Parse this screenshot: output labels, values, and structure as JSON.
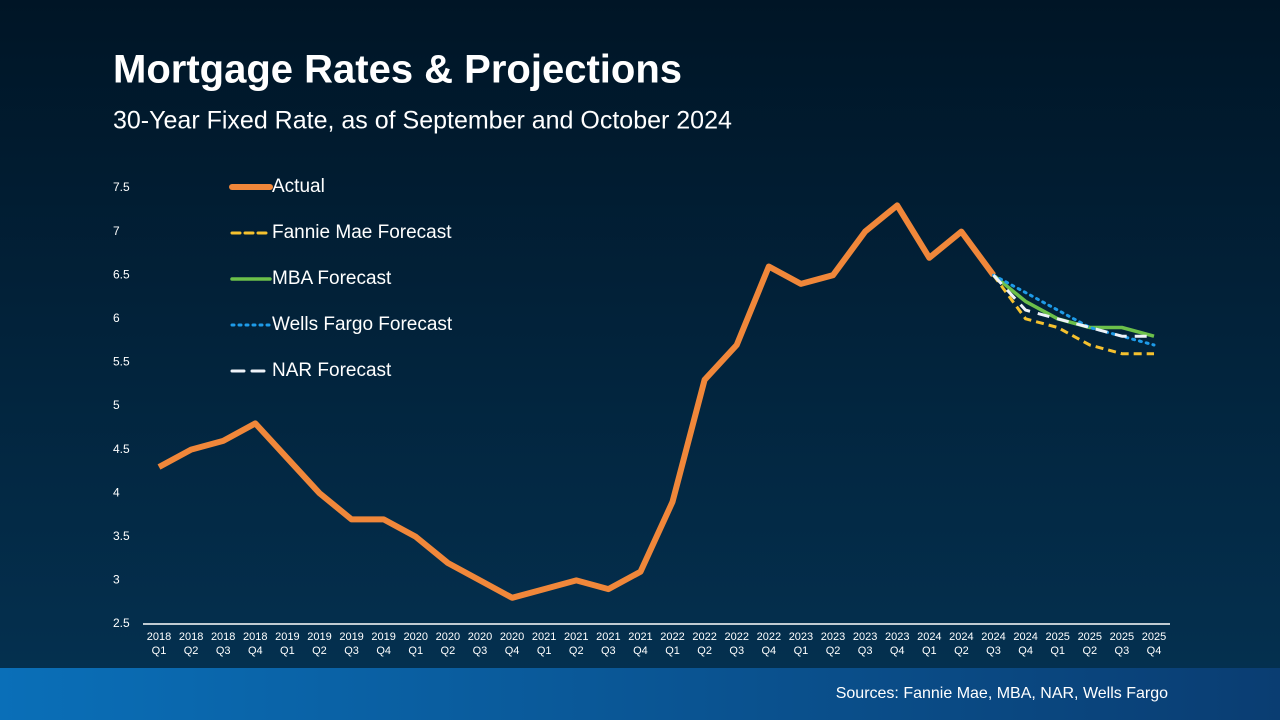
{
  "chart_data": {
    "type": "line",
    "title": "Mortgage Rates & Projections",
    "subtitle": "30-Year Fixed Rate, as of September and October 2024",
    "source": "Sources: Fannie Mae, MBA, NAR, Wells Fargo",
    "categories": [
      [
        "2018",
        "Q1"
      ],
      [
        "2018",
        "Q2"
      ],
      [
        "2018",
        "Q3"
      ],
      [
        "2018",
        "Q4"
      ],
      [
        "2019",
        "Q1"
      ],
      [
        "2019",
        "Q2"
      ],
      [
        "2019",
        "Q3"
      ],
      [
        "2019",
        "Q4"
      ],
      [
        "2020",
        "Q1"
      ],
      [
        "2020",
        "Q2"
      ],
      [
        "2020",
        "Q3"
      ],
      [
        "2020",
        "Q4"
      ],
      [
        "2021",
        "Q1"
      ],
      [
        "2021",
        "Q2"
      ],
      [
        "2021",
        "Q3"
      ],
      [
        "2021",
        "Q4"
      ],
      [
        "2022",
        "Q1"
      ],
      [
        "2022",
        "Q2"
      ],
      [
        "2022",
        "Q3"
      ],
      [
        "2022",
        "Q4"
      ],
      [
        "2023",
        "Q1"
      ],
      [
        "2023",
        "Q2"
      ],
      [
        "2023",
        "Q3"
      ],
      [
        "2023",
        "Q4"
      ],
      [
        "2024",
        "Q1"
      ],
      [
        "2024",
        "Q2"
      ],
      [
        "2024",
        "Q3"
      ],
      [
        "2024",
        "Q4"
      ],
      [
        "2025",
        "Q1"
      ],
      [
        "2025",
        "Q2"
      ],
      [
        "2025",
        "Q3"
      ],
      [
        "2025",
        "Q4"
      ]
    ],
    "series": [
      {
        "name": "Actual",
        "color": "#f0873a",
        "style": "solid",
        "values": [
          4.3,
          4.5,
          4.6,
          4.8,
          4.4,
          4.0,
          3.7,
          3.7,
          3.5,
          3.2,
          3.0,
          2.8,
          2.9,
          3.0,
          2.9,
          3.1,
          3.9,
          5.3,
          5.7,
          6.6,
          6.4,
          6.5,
          7.0,
          7.3,
          6.7,
          7.0,
          6.5,
          null,
          null,
          null,
          null,
          null
        ]
      },
      {
        "name": "Fannie Mae Forecast",
        "color": "#f5c12e",
        "style": "dashed",
        "values": [
          null,
          null,
          null,
          null,
          null,
          null,
          null,
          null,
          null,
          null,
          null,
          null,
          null,
          null,
          null,
          null,
          null,
          null,
          null,
          null,
          null,
          null,
          null,
          null,
          null,
          null,
          6.5,
          6.0,
          5.9,
          5.7,
          5.6,
          5.6
        ]
      },
      {
        "name": "MBA Forecast",
        "color": "#6cc04a",
        "style": "solid-thin",
        "values": [
          null,
          null,
          null,
          null,
          null,
          null,
          null,
          null,
          null,
          null,
          null,
          null,
          null,
          null,
          null,
          null,
          null,
          null,
          null,
          null,
          null,
          null,
          null,
          null,
          null,
          null,
          6.5,
          6.2,
          6.0,
          5.9,
          5.9,
          5.8
        ]
      },
      {
        "name": "Wells Fargo Forecast",
        "color": "#1e9be8",
        "style": "dotted",
        "values": [
          null,
          null,
          null,
          null,
          null,
          null,
          null,
          null,
          null,
          null,
          null,
          null,
          null,
          null,
          null,
          null,
          null,
          null,
          null,
          null,
          null,
          null,
          null,
          null,
          null,
          null,
          6.5,
          6.3,
          6.1,
          5.9,
          5.8,
          5.7
        ]
      },
      {
        "name": "NAR Forecast",
        "color": "#eef2f8",
        "style": "long-dash",
        "values": [
          null,
          null,
          null,
          null,
          null,
          null,
          null,
          null,
          null,
          null,
          null,
          null,
          null,
          null,
          null,
          null,
          null,
          null,
          null,
          null,
          null,
          null,
          null,
          null,
          null,
          null,
          6.5,
          6.1,
          6.0,
          5.9,
          5.8,
          5.8
        ]
      }
    ],
    "ylim": [
      2.5,
      7.5
    ],
    "yticks": [
      2.5,
      3,
      3.5,
      4,
      4.5,
      5,
      5.5,
      6,
      6.5,
      7,
      7.5
    ],
    "grid": false,
    "legend": "top-left"
  }
}
